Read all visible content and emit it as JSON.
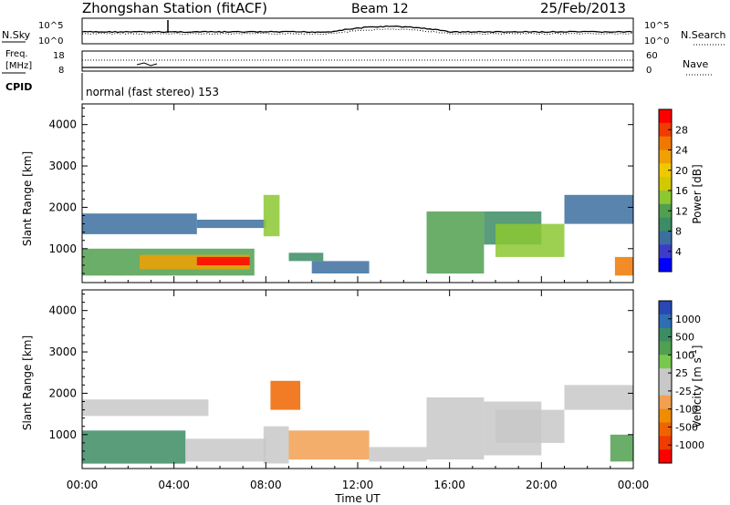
{
  "header": {
    "station": "Zhongshan Station (fitACF)",
    "beam": "Beam 12",
    "date": "25/Feb/2013"
  },
  "top_panel": {
    "left_label": "N.Sky",
    "right_label": "N.Search",
    "left_ticks": [
      "10^5",
      "10^0"
    ],
    "right_ticks": [
      "10^5",
      "10^0"
    ]
  },
  "freq_panel": {
    "left_label_1": "Freq.",
    "left_label_2": "[MHz]",
    "right_label": "Nave",
    "left_ticks": [
      "18",
      "8"
    ],
    "right_ticks": [
      "60",
      "0"
    ]
  },
  "cpid": {
    "label": "CPID",
    "text": "normal (fast stereo) 153"
  },
  "axes": {
    "ylabel": "Slant Range [km]",
    "xlabel": "Time UT",
    "y_ticks": [
      "4000",
      "3000",
      "2000",
      "1000"
    ],
    "x_ticks": [
      "00:00",
      "04:00",
      "08:00",
      "12:00",
      "16:00",
      "20:00",
      "00:00"
    ]
  },
  "power_colorbar": {
    "label": "Power [dB]",
    "ticks": [
      "28",
      "24",
      "20",
      "16",
      "12",
      "8",
      "4"
    ],
    "colors": [
      "#ff0000",
      "#f03c00",
      "#f07800",
      "#f0a000",
      "#f0c800",
      "#d2c800",
      "#8cc832",
      "#50a050",
      "#3c8c64",
      "#3c6ea0",
      "#3c3cc8",
      "#0000ff"
    ]
  },
  "velocity_colorbar": {
    "label": "Velocity [m s",
    "exp": "-1",
    "ticks": [
      "1000",
      "500",
      "100",
      "25",
      "-25",
      "-100",
      "-500",
      "-1000"
    ],
    "colors": [
      "#2848b4",
      "#2d6eb4",
      "#3c8c64",
      "#50a050",
      "#78c850",
      "#c8c8c8",
      "#c8c8c8",
      "#f0a050",
      "#f08c00",
      "#f06400",
      "#f03c00",
      "#ff0000"
    ]
  },
  "chart_data": [
    {
      "type": "heatmap",
      "title": "Power",
      "xlabel": "Time UT",
      "ylabel": "Slant Range [km]",
      "xlim": [
        0,
        24
      ],
      "ylim": [
        180,
        4500
      ],
      "colorbar_range": [
        0,
        30
      ],
      "regions": [
        {
          "t": [
            0.0,
            7.5
          ],
          "r": [
            350,
            1000
          ],
          "value": 12
        },
        {
          "t": [
            2.5,
            7.3
          ],
          "r": [
            500,
            850
          ],
          "value": 22
        },
        {
          "t": [
            5.0,
            7.3
          ],
          "r": [
            600,
            800
          ],
          "value": 28
        },
        {
          "t": [
            0.0,
            5.0
          ],
          "r": [
            1350,
            1850
          ],
          "value": 6
        },
        {
          "t": [
            5.0,
            8.0
          ],
          "r": [
            1500,
            1700
          ],
          "value": 6
        },
        {
          "t": [
            7.9,
            8.6
          ],
          "r": [
            1300,
            2300
          ],
          "value": 14
        },
        {
          "t": [
            9.0,
            10.5
          ],
          "r": [
            700,
            900
          ],
          "value": 10
        },
        {
          "t": [
            10.0,
            12.5
          ],
          "r": [
            400,
            700
          ],
          "value": 6
        },
        {
          "t": [
            15.0,
            17.5
          ],
          "r": [
            400,
            1900
          ],
          "value": 12
        },
        {
          "t": [
            17.5,
            20.0
          ],
          "r": [
            1100,
            1900
          ],
          "value": 10
        },
        {
          "t": [
            18.0,
            21.0
          ],
          "r": [
            800,
            1600
          ],
          "value": 14
        },
        {
          "t": [
            21.0,
            24.0
          ],
          "r": [
            1600,
            2300
          ],
          "value": 6
        },
        {
          "t": [
            23.2,
            24.0
          ],
          "r": [
            350,
            800
          ],
          "value": 24
        }
      ]
    },
    {
      "type": "heatmap",
      "title": "Velocity",
      "xlabel": "Time UT",
      "ylabel": "Slant Range [km]",
      "xlim": [
        0,
        24
      ],
      "ylim": [
        180,
        4500
      ],
      "colorbar_range": [
        -1000,
        1000
      ],
      "regions": [
        {
          "t": [
            0.0,
            4.5
          ],
          "r": [
            300,
            1100
          ],
          "value": 600
        },
        {
          "t": [
            0.0,
            5.5
          ],
          "r": [
            1450,
            1850
          ],
          "value": 0
        },
        {
          "t": [
            4.5,
            8.0
          ],
          "r": [
            350,
            900
          ],
          "value": 120
        },
        {
          "t": [
            7.9,
            9.0
          ],
          "r": [
            300,
            1200
          ],
          "value": -150
        },
        {
          "t": [
            8.2,
            9.5
          ],
          "r": [
            1600,
            2300
          ],
          "value": -600
        },
        {
          "t": [
            9.0,
            12.5
          ],
          "r": [
            400,
            1100
          ],
          "value": -300
        },
        {
          "t": [
            12.5,
            15.0
          ],
          "r": [
            350,
            700
          ],
          "value": -150
        },
        {
          "t": [
            15.0,
            17.5
          ],
          "r": [
            400,
            1900
          ],
          "value": -120
        },
        {
          "t": [
            17.5,
            20.0
          ],
          "r": [
            500,
            1800
          ],
          "value": 150
        },
        {
          "t": [
            18.0,
            21.0
          ],
          "r": [
            800,
            1600
          ],
          "value": -100
        },
        {
          "t": [
            21.0,
            24.0
          ],
          "r": [
            1600,
            2200
          ],
          "value": 0
        },
        {
          "t": [
            23.0,
            24.0
          ],
          "r": [
            350,
            1000
          ],
          "value": 400
        }
      ]
    }
  ]
}
